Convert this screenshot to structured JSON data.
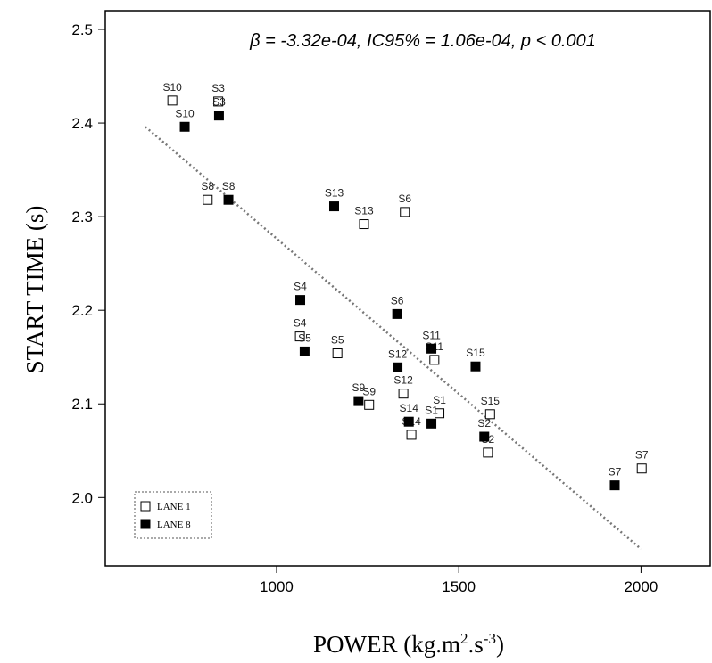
{
  "chart_data": {
    "type": "scatter",
    "xlabel": "POWER (kg.m",
    "xlabel_sup1": "2",
    "xlabel_mid": ".s",
    "xlabel_sup2": "-3",
    "xlabel_end": ")",
    "ylabel": "START TIME (s)",
    "annotation": "β = -3.32e-04, IC95% = 1.06e-04, p < 0.001",
    "xlim": [
      530,
      2190
    ],
    "ylim": [
      1.927,
      2.52
    ],
    "x_ticks": [
      1000,
      1500,
      2000
    ],
    "y_ticks": [
      2.0,
      2.1,
      2.2,
      2.3,
      2.4,
      2.5
    ],
    "y_tick_labels": [
      "2.0",
      "2.1",
      "2.2",
      "2.3",
      "2.4",
      "2.5"
    ],
    "grid": false,
    "legend_position": "bottom-left",
    "trendline": {
      "style": "dotted",
      "color": "#777777",
      "x": [
        640,
        2000
      ],
      "y": [
        2.396,
        1.945
      ]
    },
    "series": [
      {
        "name": "LANE 1",
        "marker": "open-square",
        "points": [
          {
            "label": "S10",
            "x": 714,
            "y": 2.424
          },
          {
            "label": "S3",
            "x": 840,
            "y": 2.423
          },
          {
            "label": "S8",
            "x": 811,
            "y": 2.318
          },
          {
            "label": "S6",
            "x": 1352,
            "y": 2.305
          },
          {
            "label": "S13",
            "x": 1240,
            "y": 2.292
          },
          {
            "label": "S4",
            "x": 1064,
            "y": 2.172
          },
          {
            "label": "S5",
            "x": 1167,
            "y": 2.154
          },
          {
            "label": "S11",
            "x": 1433,
            "y": 2.147
          },
          {
            "label": "S12",
            "x": 1348,
            "y": 2.111
          },
          {
            "label": "S9",
            "x": 1254,
            "y": 2.099
          },
          {
            "label": "S1",
            "x": 1447,
            "y": 2.09
          },
          {
            "label": "S15",
            "x": 1586,
            "y": 2.089
          },
          {
            "label": "S14",
            "x": 1370,
            "y": 2.067
          },
          {
            "label": "S2",
            "x": 1580,
            "y": 2.048
          },
          {
            "label": "S7",
            "x": 2002,
            "y": 2.031
          }
        ]
      },
      {
        "name": "LANE 8",
        "marker": "filled-square",
        "points": [
          {
            "label": "S10",
            "x": 748,
            "y": 2.396
          },
          {
            "label": "S3",
            "x": 842,
            "y": 2.408
          },
          {
            "label": "S8",
            "x": 868,
            "y": 2.318
          },
          {
            "label": "S13",
            "x": 1158,
            "y": 2.311
          },
          {
            "label": "S4",
            "x": 1065,
            "y": 2.211
          },
          {
            "label": "S6",
            "x": 1331,
            "y": 2.196
          },
          {
            "label": "S5",
            "x": 1077,
            "y": 2.156
          },
          {
            "label": "S11",
            "x": 1425,
            "y": 2.159
          },
          {
            "label": "S15",
            "x": 1546,
            "y": 2.14
          },
          {
            "label": "S12",
            "x": 1332,
            "y": 2.139
          },
          {
            "label": "S9",
            "x": 1225,
            "y": 2.103
          },
          {
            "label": "S14",
            "x": 1363,
            "y": 2.081
          },
          {
            "label": "S1",
            "x": 1425,
            "y": 2.079
          },
          {
            "label": "S2",
            "x": 1570,
            "y": 2.065
          },
          {
            "label": "S7",
            "x": 1928,
            "y": 2.013
          }
        ]
      }
    ]
  }
}
